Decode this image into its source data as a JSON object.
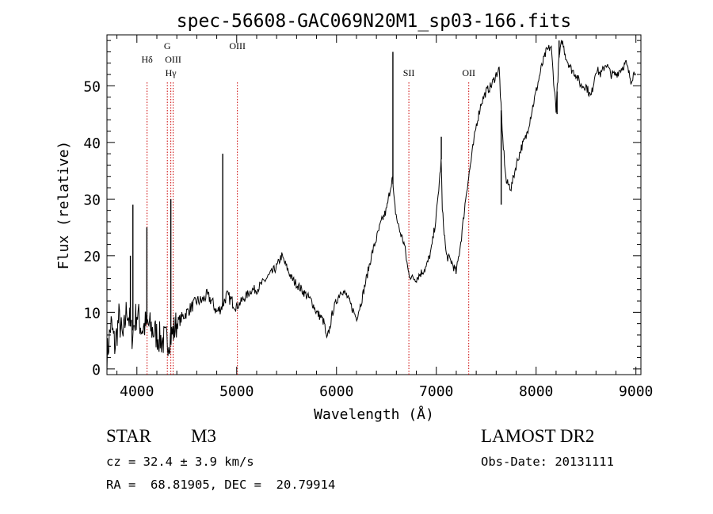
{
  "chart_data": {
    "type": "line",
    "title": "spec-56608-GAC069N20M1_sp03-166.fits",
    "xlabel": "Wavelength (Å)",
    "ylabel": "Flux (relative)",
    "xlim": [
      3700,
      9050
    ],
    "ylim": [
      -1,
      59
    ],
    "xticks": [
      4000,
      5000,
      6000,
      7000,
      8000,
      9000
    ],
    "yticks": [
      0,
      10,
      20,
      30,
      40,
      50
    ],
    "grid": false,
    "line_color": "#000000",
    "marker_color": "#cc0000",
    "x": [
      3700,
      3740,
      3780,
      3820,
      3860,
      3900,
      3950,
      4000,
      4050,
      4100,
      4150,
      4200,
      4250,
      4300,
      4350,
      4400,
      4450,
      4500,
      4550,
      4600,
      4650,
      4700,
      4750,
      4800,
      4850,
      4900,
      4950,
      5000,
      5050,
      5100,
      5150,
      5200,
      5250,
      5300,
      5350,
      5400,
      5450,
      5500,
      5550,
      5600,
      5650,
      5700,
      5750,
      5800,
      5850,
      5880,
      5900,
      5930,
      5960,
      6000,
      6050,
      6100,
      6150,
      6200,
      6250,
      6300,
      6350,
      6400,
      6450,
      6500,
      6540,
      6560,
      6575,
      6590,
      6610,
      6640,
      6680,
      6720,
      6760,
      6800,
      6850,
      6900,
      6950,
      7000,
      7050,
      7060,
      7080,
      7100,
      7150,
      7200,
      7250,
      7300,
      7350,
      7400,
      7450,
      7500,
      7550,
      7600,
      7630,
      7660,
      7700,
      7750,
      7800,
      7850,
      7900,
      7950,
      8000,
      8050,
      8100,
      8150,
      8180,
      8200,
      8230,
      8260,
      8300,
      8350,
      8400,
      8450,
      8500,
      8550,
      8600,
      8650,
      8700,
      8750,
      8800,
      8850,
      8900,
      8950,
      9000
    ],
    "series": [
      {
        "values": [
          2,
          8,
          4,
          9,
          5,
          11,
          6,
          10,
          7,
          8,
          7,
          6,
          5,
          5,
          6,
          8,
          9,
          10,
          11,
          12,
          12,
          13,
          12,
          10,
          11,
          13,
          12,
          11,
          12,
          13,
          14,
          14,
          15,
          16,
          17,
          18,
          20,
          18,
          16,
          15,
          14,
          13,
          12,
          10,
          9,
          8,
          5,
          7,
          10,
          12,
          14,
          13,
          11,
          9,
          12,
          16,
          20,
          23,
          26,
          28,
          32,
          34,
          30,
          28,
          26,
          24,
          22,
          17,
          16,
          16,
          17,
          18,
          21,
          27,
          37,
          28,
          24,
          20,
          19,
          17,
          23,
          31,
          37,
          43,
          47,
          49,
          50,
          52,
          53,
          42,
          33,
          32,
          36,
          39,
          41,
          45,
          49,
          53,
          56,
          57,
          50,
          46,
          55,
          58,
          55,
          53,
          52,
          50,
          50,
          48,
          53,
          52,
          54,
          52,
          52,
          53,
          54,
          51,
          53
        ]
      }
    ],
    "spikes": [
      {
        "x": 3960,
        "y": 29
      },
      {
        "x": 3935,
        "y": 20
      },
      {
        "x": 4100,
        "y": 25
      },
      {
        "x": 4340,
        "y": 30
      },
      {
        "x": 4860,
        "y": 38
      },
      {
        "x": 6565,
        "y": 56
      },
      {
        "x": 7050,
        "y": 41
      },
      {
        "x": 8230,
        "y": 58
      },
      {
        "x": 8210,
        "y": 45
      },
      {
        "x": 7650,
        "y": 29
      }
    ],
    "line_markers": [
      {
        "name": "Hδ",
        "x": 4102,
        "row": 1
      },
      {
        "name": "G",
        "x": 4305,
        "row": 0
      },
      {
        "name": "OIII",
        "x": 4363,
        "row": 1
      },
      {
        "name": "Hγ",
        "x": 4340,
        "row": 2
      },
      {
        "name": "OIII",
        "x": 5007,
        "row": 0
      },
      {
        "name": "SII",
        "x": 6725,
        "row": 2
      },
      {
        "name": "OII",
        "x": 7325,
        "row": 2
      }
    ]
  },
  "info": {
    "class_label": "STAR",
    "subclass": "M3",
    "cz": "cz = 32.4 ± 3.9 km/s",
    "coords": "RA =  68.81905, DEC =  20.79914",
    "survey": "LAMOST DR2",
    "obs_date": "Obs-Date: 20131111"
  }
}
